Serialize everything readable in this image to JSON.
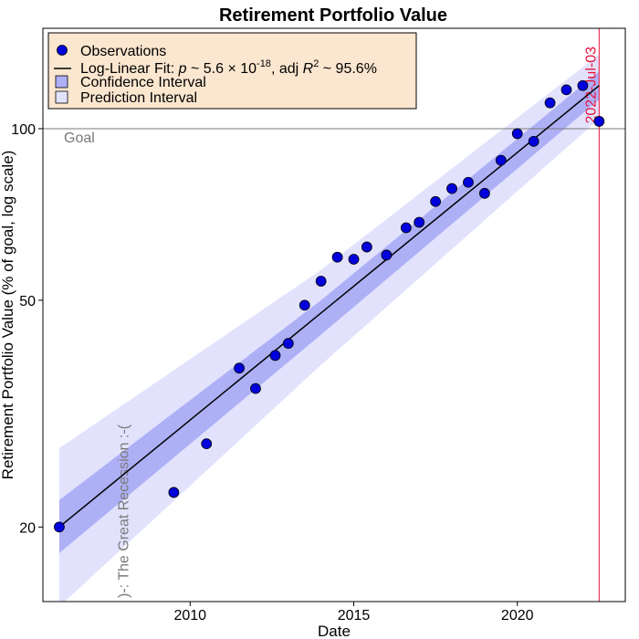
{
  "chart_data": {
    "type": "scatter",
    "title": "Retirement Portfolio Value",
    "xlabel": "Date",
    "ylabel": "Retirement Portfolio Value (% of goal, log scale)",
    "y_scale": "log",
    "xlim": [
      2005.5,
      2023.3
    ],
    "ylim": [
      14.8,
      150
    ],
    "x_ticks": [
      2010,
      2015,
      2020
    ],
    "y_ticks": [
      20,
      50,
      100
    ],
    "grid": false,
    "legend_position": "top-left",
    "colors": {
      "points": "#0000dd",
      "fit_line": "#000000",
      "confidence_band": "#aeb0f6",
      "prediction_band": "#e2e2fd",
      "legend_background": "#fbe6cf",
      "goal_line": "#7a7a7a",
      "date_marker": "#e8133c"
    },
    "legend": {
      "observations": "Observations",
      "fit_prefix": "Log-Linear Fit: ",
      "fit_p": "p",
      "fit_approx1": " ~ 5.6 × 10",
      "fit_exp": "-18",
      "fit_adj": ", adj ",
      "fit_r": "R",
      "fit_r_exp": "2",
      "fit_tail": " ~ 95.6%",
      "confidence": "Confidence Interval",
      "prediction": "Prediction Interval"
    },
    "annotations": {
      "goal_label": "Goal",
      "goal_value": 100,
      "recession_label": ")-: The Great Recession :-(",
      "recession_x": 2008.0,
      "date_label": "2022-Jul-03",
      "date_x": 2022.5
    },
    "fit": {
      "x": [
        2006.0,
        2022.5
      ],
      "y": [
        20.0,
        119.0
      ]
    },
    "confidence_band": {
      "x": [
        2006.0,
        2014.0,
        2022.5
      ],
      "upper": [
        22.3,
        50.0,
        126.0
      ],
      "lower": [
        18.0,
        43.5,
        112.5
      ]
    },
    "prediction_band": {
      "x": [
        2006.0,
        2014.0,
        2022.5
      ],
      "upper": [
        27.5,
        56.5,
        135.0
      ],
      "lower": [
        14.5,
        38.5,
        104.0
      ]
    },
    "points": {
      "x": [
        2006.0,
        2009.5,
        2010.5,
        2011.5,
        2012.0,
        2012.6,
        2013.0,
        2013.5,
        2014.0,
        2014.5,
        2015.0,
        2015.4,
        2016.0,
        2016.6,
        2017.0,
        2017.5,
        2018.0,
        2018.5,
        2019.0,
        2019.5,
        2020.0,
        2020.5,
        2021.0,
        2021.5,
        2022.0,
        2022.5
      ],
      "y": [
        20.0,
        23.0,
        28.0,
        38.0,
        35.0,
        40.0,
        42.0,
        49.0,
        54.0,
        59.5,
        59.0,
        62.0,
        60.0,
        67.0,
        68.5,
        74.5,
        78.5,
        80.5,
        77.0,
        88.0,
        98.0,
        95.0,
        111.0,
        117.0,
        119.0,
        103.0
      ]
    }
  }
}
